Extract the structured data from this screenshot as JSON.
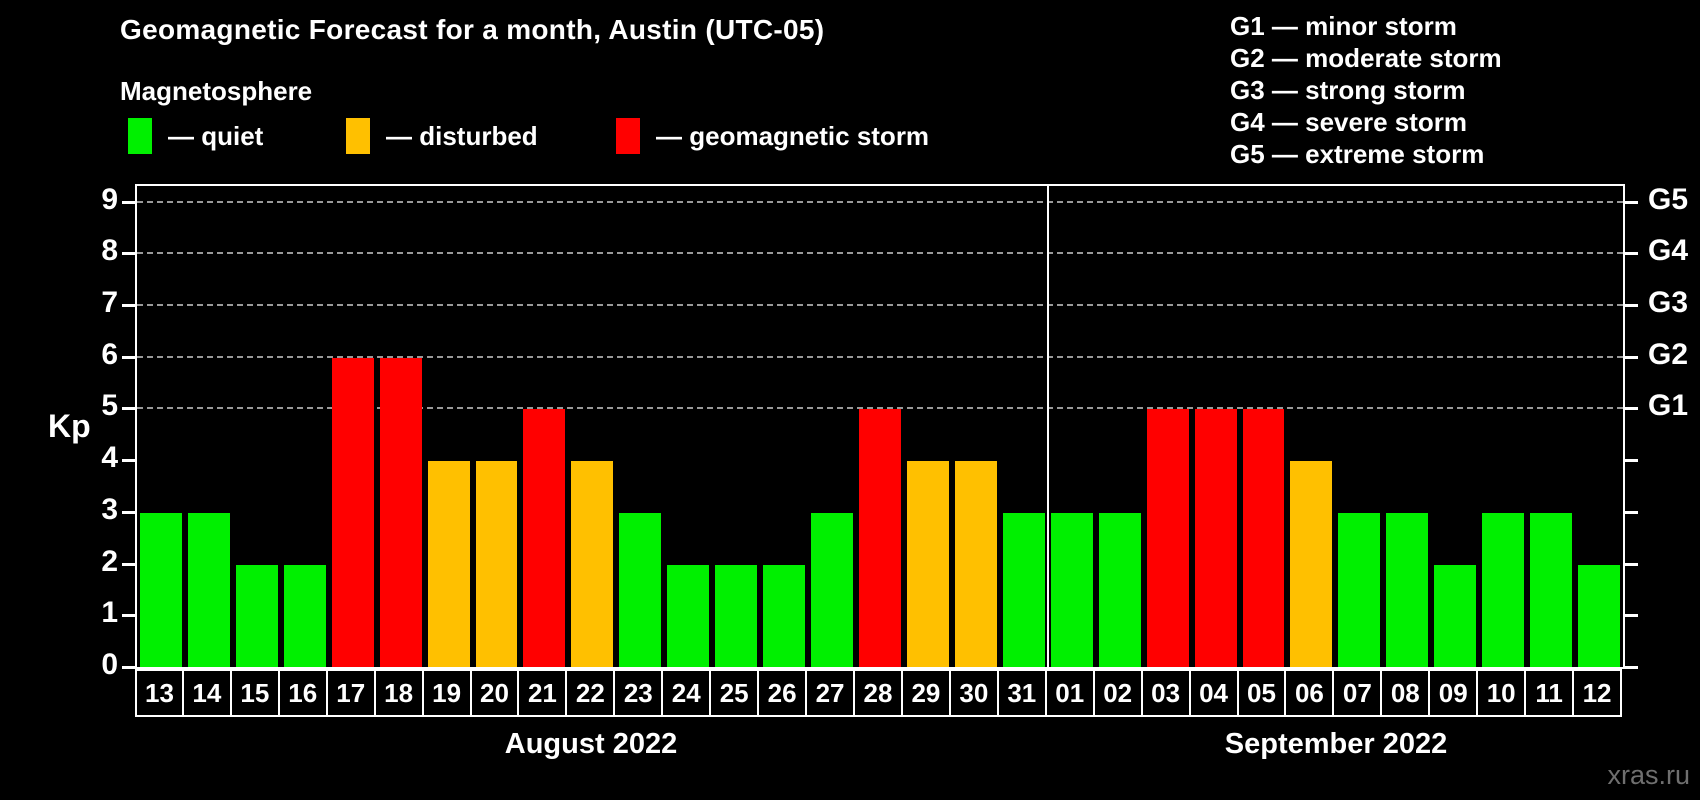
{
  "header": {
    "title": "Geomagnetic Forecast for a month, Austin (UTC-05)"
  },
  "magnetosphere_legend": {
    "title": "Magnetosphere",
    "items": [
      {
        "key": "quiet",
        "label": "— quiet"
      },
      {
        "key": "disturbed",
        "label": "— disturbed"
      },
      {
        "key": "storm",
        "label": "— geomagnetic storm"
      }
    ]
  },
  "g_legend": {
    "items": [
      "G1 — minor storm",
      "G2 — moderate storm",
      "G3 — strong storm",
      "G4 — severe storm",
      "G5 — extreme storm"
    ]
  },
  "watermark": "xras.ru",
  "chart_data": {
    "type": "bar",
    "title": "Geomagnetic Forecast for a month, Austin (UTC-05)",
    "ylabel": "Kp",
    "xlabel": "",
    "ylim": [
      0,
      9.3
    ],
    "y_ticks": [
      0,
      1,
      2,
      3,
      4,
      5,
      6,
      7,
      8,
      9
    ],
    "gridlines_at": [
      5,
      6,
      7,
      8,
      9
    ],
    "grid": "dashed horizontal at storm levels",
    "right_axis": [
      {
        "label": "G1",
        "kp": 5
      },
      {
        "label": "G2",
        "kp": 6
      },
      {
        "label": "G3",
        "kp": 7
      },
      {
        "label": "G4",
        "kp": 8
      },
      {
        "label": "G5",
        "kp": 9
      }
    ],
    "colors": {
      "quiet": "#00F000",
      "disturbed": "#FFC000",
      "storm": "#FF0000",
      "background": "#000000",
      "text": "#FFFFFF",
      "grid": "#9A9A9A",
      "watermark": "#6F6F6F"
    },
    "months": [
      {
        "label": "August 2022",
        "days": [
          {
            "day": "13",
            "kp": 3,
            "level": "quiet"
          },
          {
            "day": "14",
            "kp": 3,
            "level": "quiet"
          },
          {
            "day": "15",
            "kp": 2,
            "level": "quiet"
          },
          {
            "day": "16",
            "kp": 2,
            "level": "quiet"
          },
          {
            "day": "17",
            "kp": 6,
            "level": "storm"
          },
          {
            "day": "18",
            "kp": 6,
            "level": "storm"
          },
          {
            "day": "19",
            "kp": 4,
            "level": "disturbed"
          },
          {
            "day": "20",
            "kp": 4,
            "level": "disturbed"
          },
          {
            "day": "21",
            "kp": 5,
            "level": "storm"
          },
          {
            "day": "22",
            "kp": 4,
            "level": "disturbed"
          },
          {
            "day": "23",
            "kp": 3,
            "level": "quiet"
          },
          {
            "day": "24",
            "kp": 2,
            "level": "quiet"
          },
          {
            "day": "25",
            "kp": 2,
            "level": "quiet"
          },
          {
            "day": "26",
            "kp": 2,
            "level": "quiet"
          },
          {
            "day": "27",
            "kp": 3,
            "level": "quiet"
          },
          {
            "day": "28",
            "kp": 5,
            "level": "storm"
          },
          {
            "day": "29",
            "kp": 4,
            "level": "disturbed"
          },
          {
            "day": "30",
            "kp": 4,
            "level": "disturbed"
          },
          {
            "day": "31",
            "kp": 3,
            "level": "quiet"
          }
        ]
      },
      {
        "label": "September 2022",
        "days": [
          {
            "day": "01",
            "kp": 3,
            "level": "quiet"
          },
          {
            "day": "02",
            "kp": 3,
            "level": "quiet"
          },
          {
            "day": "03",
            "kp": 5,
            "level": "storm"
          },
          {
            "day": "04",
            "kp": 5,
            "level": "storm"
          },
          {
            "day": "05",
            "kp": 5,
            "level": "storm"
          },
          {
            "day": "06",
            "kp": 4,
            "level": "disturbed"
          },
          {
            "day": "07",
            "kp": 3,
            "level": "quiet"
          },
          {
            "day": "08",
            "kp": 3,
            "level": "quiet"
          },
          {
            "day": "09",
            "kp": 2,
            "level": "quiet"
          },
          {
            "day": "10",
            "kp": 3,
            "level": "quiet"
          },
          {
            "day": "11",
            "kp": 3,
            "level": "quiet"
          },
          {
            "day": "12",
            "kp": 2,
            "level": "quiet"
          }
        ]
      }
    ]
  }
}
